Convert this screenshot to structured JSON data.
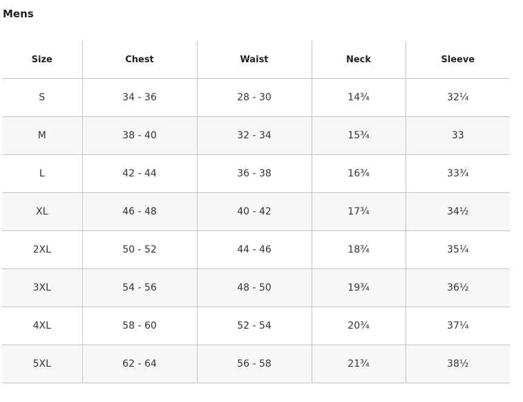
{
  "title": "Mens",
  "headers": [
    "Size",
    "Chest",
    "Waist",
    "Neck",
    "Sleeve"
  ],
  "rows": [
    [
      "S",
      "34 - 36",
      "28 - 30",
      "14¾",
      "32¼"
    ],
    [
      "M",
      "38 - 40",
      "32 - 34",
      "15¾",
      "33"
    ],
    [
      "L",
      "42 - 44",
      "36 - 38",
      "16¾",
      "33¾"
    ],
    [
      "XL",
      "46 - 48",
      "40 - 42",
      "17¾",
      "34½"
    ],
    [
      "2XL",
      "50 - 52",
      "44 - 46",
      "18¾",
      "35¼"
    ],
    [
      "3XL",
      "54 - 56",
      "48 - 50",
      "19¾",
      "36½"
    ],
    [
      "4XL",
      "58 - 60",
      "52 - 54",
      "20¾",
      "37¼"
    ],
    [
      "5XL",
      "62 - 64",
      "56 - 58",
      "21¾",
      "38½"
    ]
  ]
}
